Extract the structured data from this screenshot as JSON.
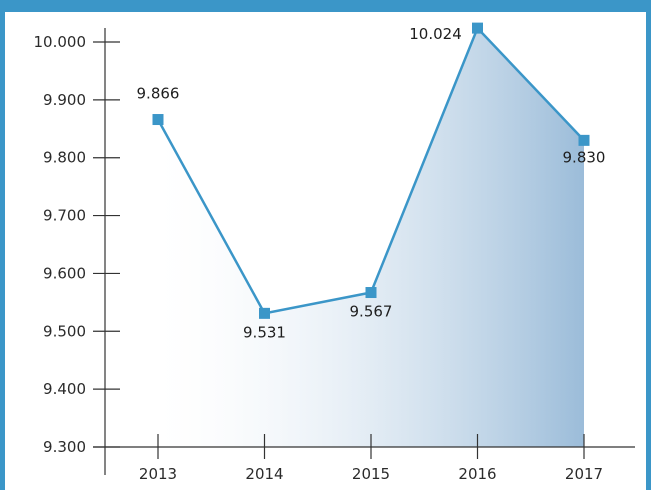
{
  "colors": {
    "frame": "#3b96c8",
    "line": "#3b96c8",
    "marker": "#3b96c8",
    "axis": "#333333",
    "area_start": "#ffffff",
    "area_end": "#9bbcd9"
  },
  "chart_data": {
    "type": "area",
    "title": "",
    "xlabel": "",
    "ylabel": "",
    "categories": [
      "2013",
      "2014",
      "2015",
      "2016",
      "2017"
    ],
    "series": [
      {
        "values": [
          9866,
          9531,
          9567,
          10024,
          9830
        ],
        "data_labels": [
          "9.866",
          "9.531",
          "9.567",
          "10.024",
          "9.830"
        ]
      }
    ],
    "ylim": [
      9300,
      10000
    ],
    "y_ticks": [
      9300,
      9400,
      9500,
      9600,
      9700,
      9800,
      9900,
      10000
    ],
    "y_tick_labels": [
      "9.300",
      "9.400",
      "9.500",
      "9.600",
      "9.700",
      "9.800",
      "9.900",
      "10.000"
    ],
    "grid": false,
    "legend": "none"
  }
}
